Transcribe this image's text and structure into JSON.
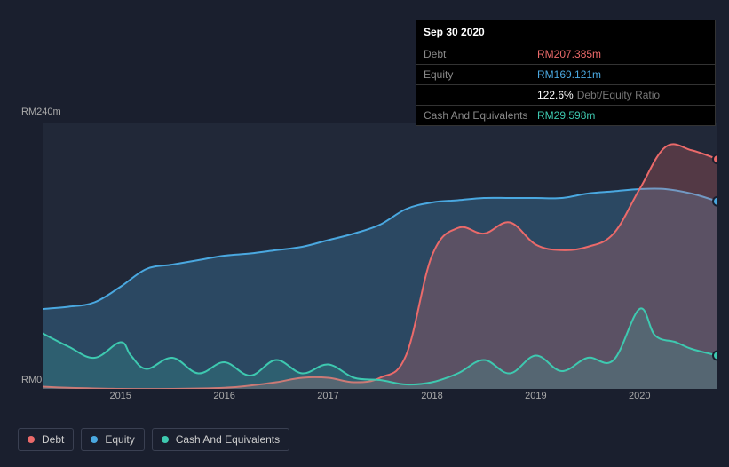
{
  "tooltip": {
    "date": "Sep 30 2020",
    "rows": [
      {
        "label": "Debt",
        "value": "RM207.385m",
        "color": "#eb6a6a"
      },
      {
        "label": "Equity",
        "value": "RM169.121m",
        "color": "#4aa8e0"
      },
      {
        "label": "",
        "pct": "122.6%",
        "ratio_label": "Debt/Equity Ratio"
      },
      {
        "label": "Cash And Equivalents",
        "value": "RM29.598m",
        "color": "#3ec9b0"
      }
    ]
  },
  "chart": {
    "type": "area",
    "background_color": "#1a1f2e",
    "plot_background": "#212838",
    "y_max_label": "RM240m",
    "y_zero_label": "RM0",
    "ylim": [
      0,
      240
    ],
    "x_ticks": [
      "2015",
      "2016",
      "2017",
      "2018",
      "2019",
      "2020"
    ],
    "x_domain": [
      2014.25,
      2020.75
    ],
    "series": [
      {
        "name": "Debt",
        "color": "#eb6a6a",
        "fill": "rgba(235,106,106,0.25)",
        "points": [
          [
            2014.25,
            2
          ],
          [
            2014.5,
            1
          ],
          [
            2015,
            0
          ],
          [
            2015.5,
            0
          ],
          [
            2016,
            1
          ],
          [
            2016.25,
            3
          ],
          [
            2016.5,
            6
          ],
          [
            2016.75,
            10
          ],
          [
            2017,
            10
          ],
          [
            2017.25,
            6
          ],
          [
            2017.5,
            10
          ],
          [
            2017.75,
            30
          ],
          [
            2018,
            120
          ],
          [
            2018.25,
            145
          ],
          [
            2018.5,
            140
          ],
          [
            2018.75,
            150
          ],
          [
            2019,
            130
          ],
          [
            2019.25,
            125
          ],
          [
            2019.5,
            128
          ],
          [
            2019.75,
            140
          ],
          [
            2020,
            180
          ],
          [
            2020.25,
            218
          ],
          [
            2020.5,
            215
          ],
          [
            2020.75,
            207
          ]
        ]
      },
      {
        "name": "Equity",
        "color": "#4aa8e0",
        "fill": "rgba(74,168,224,0.25)",
        "points": [
          [
            2014.25,
            72
          ],
          [
            2014.5,
            74
          ],
          [
            2014.75,
            78
          ],
          [
            2015,
            92
          ],
          [
            2015.25,
            108
          ],
          [
            2015.5,
            112
          ],
          [
            2015.75,
            116
          ],
          [
            2016,
            120
          ],
          [
            2016.25,
            122
          ],
          [
            2016.5,
            125
          ],
          [
            2016.75,
            128
          ],
          [
            2017,
            134
          ],
          [
            2017.25,
            140
          ],
          [
            2017.5,
            148
          ],
          [
            2017.75,
            162
          ],
          [
            2018,
            168
          ],
          [
            2018.25,
            170
          ],
          [
            2018.5,
            172
          ],
          [
            2018.75,
            172
          ],
          [
            2019,
            172
          ],
          [
            2019.25,
            172
          ],
          [
            2019.5,
            176
          ],
          [
            2019.75,
            178
          ],
          [
            2020,
            180
          ],
          [
            2020.25,
            180
          ],
          [
            2020.5,
            176
          ],
          [
            2020.75,
            169
          ]
        ]
      },
      {
        "name": "Cash And Equivalents",
        "color": "#3ec9b0",
        "fill": "rgba(62,201,176,0.18)",
        "points": [
          [
            2014.25,
            50
          ],
          [
            2014.5,
            38
          ],
          [
            2014.75,
            28
          ],
          [
            2015,
            42
          ],
          [
            2015.1,
            30
          ],
          [
            2015.25,
            18
          ],
          [
            2015.5,
            28
          ],
          [
            2015.75,
            14
          ],
          [
            2016,
            24
          ],
          [
            2016.25,
            12
          ],
          [
            2016.5,
            26
          ],
          [
            2016.75,
            14
          ],
          [
            2017,
            22
          ],
          [
            2017.25,
            10
          ],
          [
            2017.5,
            8
          ],
          [
            2017.75,
            4
          ],
          [
            2018,
            6
          ],
          [
            2018.25,
            14
          ],
          [
            2018.5,
            26
          ],
          [
            2018.75,
            14
          ],
          [
            2019,
            30
          ],
          [
            2019.25,
            16
          ],
          [
            2019.5,
            28
          ],
          [
            2019.75,
            26
          ],
          [
            2020,
            72
          ],
          [
            2020.15,
            48
          ],
          [
            2020.35,
            42
          ],
          [
            2020.5,
            36
          ],
          [
            2020.75,
            30
          ]
        ]
      }
    ],
    "end_markers": [
      {
        "series": "Debt",
        "x": 2020.75,
        "y": 207,
        "color": "#eb6a6a"
      },
      {
        "series": "Equity",
        "x": 2020.75,
        "y": 169,
        "color": "#4aa8e0"
      },
      {
        "series": "Cash And Equivalents",
        "x": 2020.75,
        "y": 30,
        "color": "#3ec9b0"
      }
    ]
  },
  "legend": [
    {
      "label": "Debt",
      "color": "#eb6a6a"
    },
    {
      "label": "Equity",
      "color": "#4aa8e0"
    },
    {
      "label": "Cash And Equivalents",
      "color": "#3ec9b0"
    }
  ]
}
